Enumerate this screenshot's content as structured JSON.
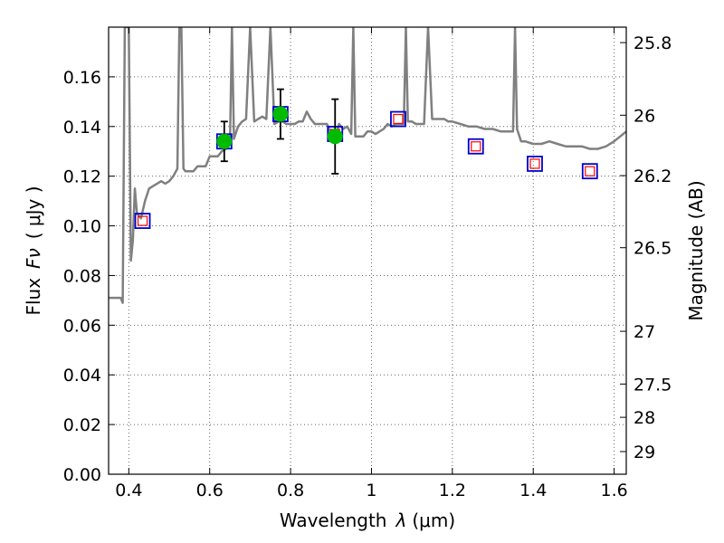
{
  "chart_data": {
    "type": "scatter",
    "title": "",
    "xlabel_text": "Wavelength",
    "xlabel_symbol": "λ",
    "xlabel_unit": "(μm)",
    "ylabel_text": "Flux",
    "ylabel_symbol": "Fν",
    "ylabel_unit": "( μJy )",
    "y2label": "Magnitude (AB)",
    "xlim": [
      0.35,
      1.63
    ],
    "ylim": [
      0.0,
      0.18
    ],
    "grid": true,
    "x_ticks": [
      {
        "value": 0.4,
        "label": "0.4"
      },
      {
        "value": 0.6,
        "label": "0.6"
      },
      {
        "value": 0.8,
        "label": "0.8"
      },
      {
        "value": 1.0,
        "label": "1"
      },
      {
        "value": 1.2,
        "label": "1.2"
      },
      {
        "value": 1.4,
        "label": "1.4"
      },
      {
        "value": 1.6,
        "label": "1.6"
      }
    ],
    "y_ticks": [
      {
        "value": 0.0,
        "label": "0.00"
      },
      {
        "value": 0.02,
        "label": "0.02"
      },
      {
        "value": 0.04,
        "label": "0.04"
      },
      {
        "value": 0.06,
        "label": "0.06"
      },
      {
        "value": 0.08,
        "label": "0.08"
      },
      {
        "value": 0.1,
        "label": "0.10"
      },
      {
        "value": 0.12,
        "label": "0.12"
      },
      {
        "value": 0.14,
        "label": "0.14"
      },
      {
        "value": 0.16,
        "label": "0.16"
      }
    ],
    "y2_ticks": [
      {
        "value": 25.8,
        "label": "25.8"
      },
      {
        "value": 26.0,
        "label": "26"
      },
      {
        "value": 26.2,
        "label": "26.2"
      },
      {
        "value": 26.5,
        "label": "26.5"
      },
      {
        "value": 27.0,
        "label": "27"
      },
      {
        "value": 27.5,
        "label": "27.5"
      },
      {
        "value": 28.0,
        "label": "28"
      },
      {
        "value": 29.0,
        "label": "29"
      }
    ],
    "colors": {
      "spectrum": "#808080",
      "observed": "#00bb00",
      "model_outer": "#0000cc",
      "model_inner": "#ff0000",
      "errorbar": "#000000"
    },
    "series": [
      {
        "kind": "spectrum",
        "x": [
          0.35,
          0.36,
          0.37,
          0.375,
          0.38,
          0.385,
          0.39,
          0.395,
          0.4,
          0.405,
          0.41,
          0.415,
          0.42,
          0.43,
          0.44,
          0.45,
          0.46,
          0.47,
          0.48,
          0.49,
          0.5,
          0.51,
          0.52,
          0.525,
          0.53,
          0.535,
          0.54,
          0.55,
          0.56,
          0.57,
          0.58,
          0.59,
          0.6,
          0.61,
          0.62,
          0.63,
          0.64,
          0.65,
          0.655,
          0.66,
          0.67,
          0.68,
          0.69,
          0.7,
          0.71,
          0.72,
          0.73,
          0.74,
          0.75,
          0.76,
          0.77,
          0.78,
          0.79,
          0.8,
          0.81,
          0.82,
          0.83,
          0.84,
          0.85,
          0.86,
          0.87,
          0.88,
          0.89,
          0.9,
          0.91,
          0.92,
          0.93,
          0.94,
          0.95,
          0.955,
          0.96,
          0.97,
          0.98,
          0.99,
          1.0,
          1.01,
          1.02,
          1.03,
          1.04,
          1.05,
          1.06,
          1.07,
          1.08,
          1.085,
          1.09,
          1.1,
          1.11,
          1.12,
          1.13,
          1.14,
          1.15,
          1.16,
          1.17,
          1.18,
          1.19,
          1.2,
          1.22,
          1.24,
          1.26,
          1.28,
          1.3,
          1.32,
          1.34,
          1.35,
          1.355,
          1.36,
          1.37,
          1.38,
          1.4,
          1.42,
          1.44,
          1.46,
          1.48,
          1.5,
          1.52,
          1.54,
          1.56,
          1.58,
          1.6,
          1.63
        ],
        "y": [
          0.071,
          0.071,
          0.071,
          0.071,
          0.071,
          0.069,
          0.18,
          0.18,
          0.18,
          0.086,
          0.094,
          0.115,
          0.105,
          0.103,
          0.11,
          0.115,
          0.116,
          0.117,
          0.118,
          0.117,
          0.118,
          0.12,
          0.123,
          0.18,
          0.18,
          0.123,
          0.122,
          0.122,
          0.122,
          0.124,
          0.124,
          0.124,
          0.128,
          0.128,
          0.128,
          0.13,
          0.131,
          0.133,
          0.18,
          0.135,
          0.14,
          0.142,
          0.143,
          0.18,
          0.142,
          0.143,
          0.144,
          0.143,
          0.18,
          0.141,
          0.142,
          0.142,
          0.141,
          0.141,
          0.141,
          0.142,
          0.142,
          0.146,
          0.143,
          0.141,
          0.141,
          0.141,
          0.141,
          0.137,
          0.135,
          0.141,
          0.139,
          0.14,
          0.137,
          0.18,
          0.136,
          0.136,
          0.136,
          0.138,
          0.138,
          0.137,
          0.138,
          0.139,
          0.141,
          0.14,
          0.141,
          0.141,
          0.141,
          0.18,
          0.142,
          0.142,
          0.141,
          0.141,
          0.141,
          0.18,
          0.143,
          0.143,
          0.143,
          0.143,
          0.142,
          0.142,
          0.141,
          0.14,
          0.14,
          0.139,
          0.139,
          0.138,
          0.138,
          0.138,
          0.18,
          0.139,
          0.134,
          0.134,
          0.133,
          0.133,
          0.134,
          0.133,
          0.132,
          0.132,
          0.132,
          0.131,
          0.131,
          0.132,
          0.134,
          0.138
        ]
      },
      {
        "kind": "model",
        "x": [
          0.434,
          0.636,
          0.775,
          0.91,
          1.066,
          1.258,
          1.404,
          1.54
        ],
        "y": [
          0.102,
          0.134,
          0.145,
          0.137,
          0.143,
          0.132,
          0.125,
          0.122
        ]
      },
      {
        "kind": "observed",
        "x": [
          0.636,
          0.775,
          0.91
        ],
        "y": [
          0.134,
          0.145,
          0.136
        ],
        "err": [
          0.008,
          0.01,
          0.015
        ]
      }
    ]
  }
}
